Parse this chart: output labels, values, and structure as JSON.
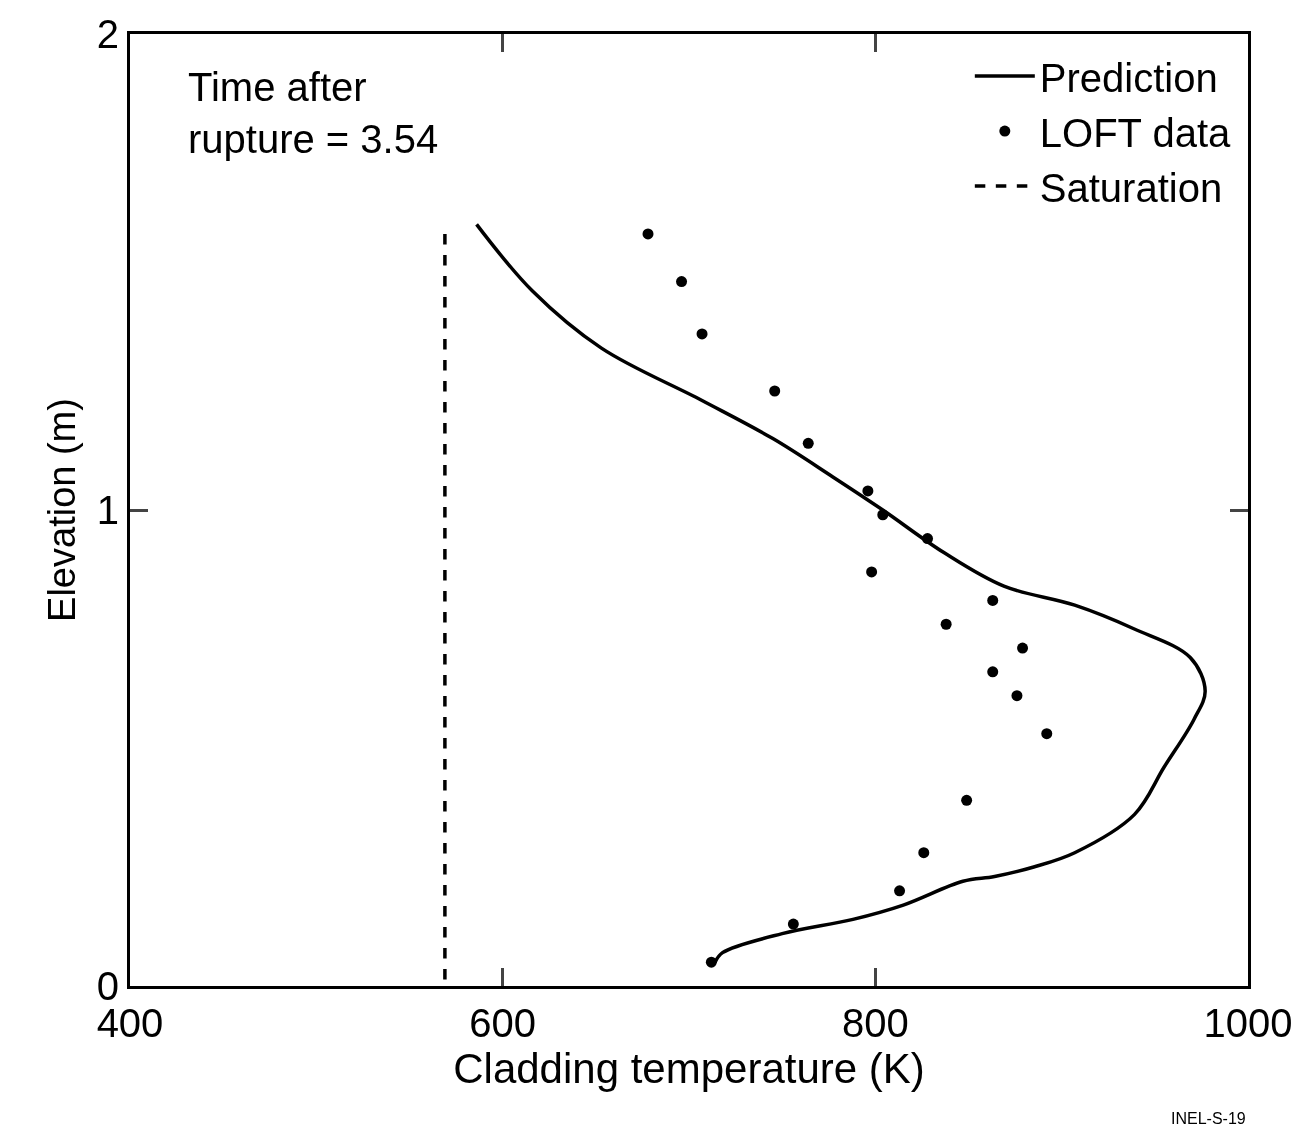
{
  "chart_data": {
    "type": "line",
    "xlabel": "Cladding temperature (K)",
    "ylabel": "Elevation (m)",
    "xlim": [
      400,
      1000
    ],
    "xticks": [
      400,
      600,
      800,
      1000
    ],
    "ylim": [
      0,
      2
    ],
    "yticks": [
      0,
      1,
      2
    ],
    "legend": "top right",
    "series": [
      {
        "name": "Prediction",
        "color": "#000000",
        "line_style": "solid",
        "marker": "none",
        "x": [
          586,
          616,
          653,
          707,
          745,
          777,
          804,
          837,
          869,
          907,
          939,
          969,
          977,
          971,
          955,
          939,
          907,
          885,
          864,
          847,
          815,
          788,
          750,
          718,
          714
        ],
        "values": [
          1.6,
          1.46,
          1.34,
          1.23,
          1.15,
          1.07,
          1.0,
          0.91,
          0.84,
          0.8,
          0.75,
          0.69,
          0.62,
          0.56,
          0.46,
          0.36,
          0.28,
          0.25,
          0.23,
          0.22,
          0.17,
          0.14,
          0.11,
          0.07,
          0.05
        ]
      },
      {
        "name": "LOFT data",
        "type": "scatter",
        "color": "#000000",
        "marker": "circle",
        "x": [
          678,
          696,
          707,
          746,
          764,
          796,
          804,
          828,
          798,
          863,
          838,
          879,
          863,
          876,
          892,
          849,
          826,
          813,
          756,
          712
        ],
        "values": [
          1.58,
          1.48,
          1.37,
          1.25,
          1.14,
          1.04,
          0.99,
          0.94,
          0.87,
          0.81,
          0.76,
          0.71,
          0.66,
          0.61,
          0.53,
          0.39,
          0.28,
          0.2,
          0.13,
          0.05
        ]
      },
      {
        "name": "Saturation",
        "color": "#000000",
        "line_style": "dashed",
        "marker": "none",
        "x": [
          569,
          569
        ],
        "values": [
          1.58,
          0
        ]
      }
    ],
    "annotations": [
      "Time after\nrupture = 3.54",
      "INEL-S-19"
    ]
  }
}
